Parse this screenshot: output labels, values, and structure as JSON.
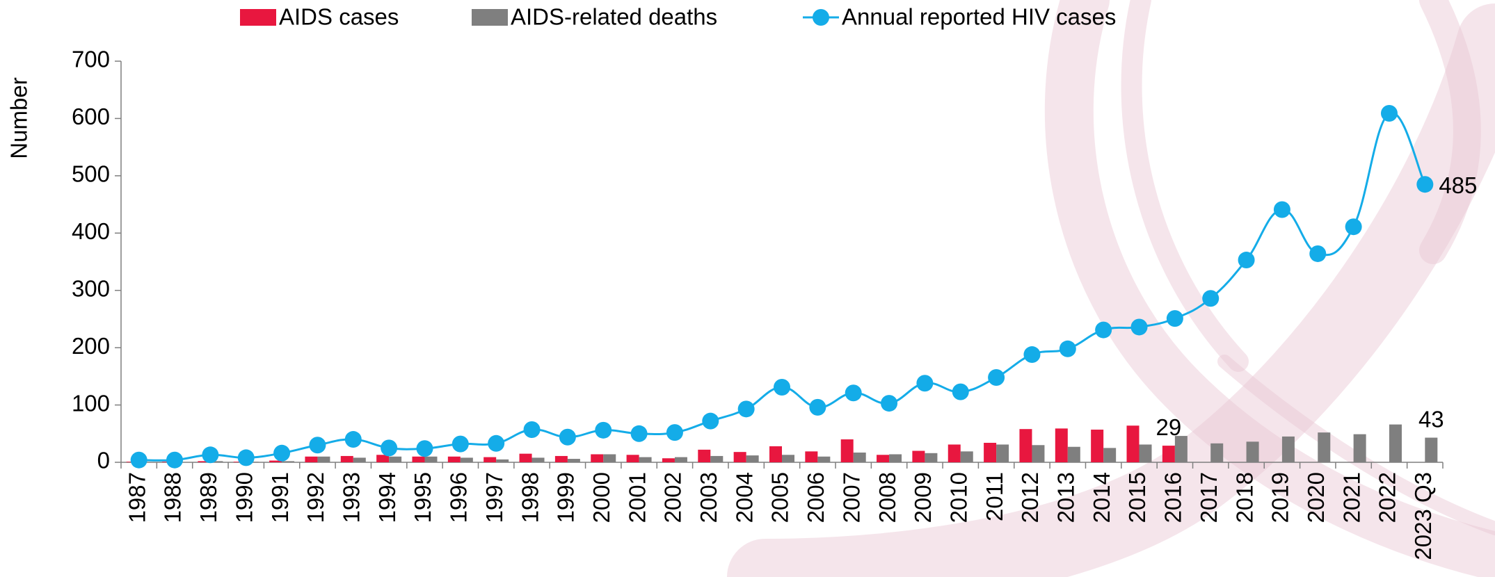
{
  "chart_data": {
    "type": "bar-line",
    "y_label": "Number",
    "categories": [
      "1987",
      "1988",
      "1989",
      "1990",
      "1991",
      "1992",
      "1993",
      "1994",
      "1995",
      "1996",
      "1997",
      "1998",
      "1999",
      "2000",
      "2001",
      "2002",
      "2003",
      "2004",
      "2005",
      "2006",
      "2007",
      "2008",
      "2009",
      "2010",
      "2011",
      "2012",
      "2013",
      "2014",
      "2015",
      "2016",
      "2017",
      "2018",
      "2019",
      "2020",
      "2021",
      "2022",
      "2023 Q3"
    ],
    "series": [
      {
        "name": "AIDS cases",
        "type": "bar",
        "color": "#e8173f",
        "values": [
          1,
          1,
          2,
          1,
          3,
          10,
          11,
          13,
          10,
          10,
          9,
          15,
          11,
          14,
          13,
          7,
          22,
          18,
          28,
          19,
          40,
          13,
          20,
          31,
          34,
          58,
          59,
          57,
          64,
          29,
          null,
          null,
          null,
          null,
          null,
          null,
          null
        ],
        "label_indices": [
          29
        ]
      },
      {
        "name": "AIDS-related deaths",
        "type": "bar",
        "color": "#7f7f7f",
        "values": [
          0,
          0,
          2,
          1,
          2,
          10,
          8,
          10,
          10,
          8,
          5,
          8,
          6,
          14,
          9,
          9,
          11,
          12,
          13,
          10,
          17,
          14,
          16,
          19,
          31,
          30,
          27,
          25,
          31,
          46,
          33,
          36,
          45,
          52,
          49,
          66,
          43
        ],
        "label_indices": [
          36
        ]
      },
      {
        "name": "Annual reported HIV cases",
        "type": "line",
        "color": "#14ace8",
        "values": [
          4,
          4,
          13,
          8,
          16,
          30,
          40,
          25,
          24,
          32,
          33,
          57,
          44,
          56,
          50,
          52,
          72,
          93,
          131,
          96,
          121,
          103,
          138,
          123,
          148,
          188,
          198,
          231,
          236,
          251,
          286,
          353,
          441,
          364,
          411,
          609,
          485
        ],
        "label_indices": [
          36
        ]
      }
    ],
    "ylim": [
      0,
      700
    ],
    "yticks": [
      0,
      100,
      200,
      300,
      400,
      500,
      600,
      700
    ],
    "grid": false,
    "legend": "top"
  }
}
